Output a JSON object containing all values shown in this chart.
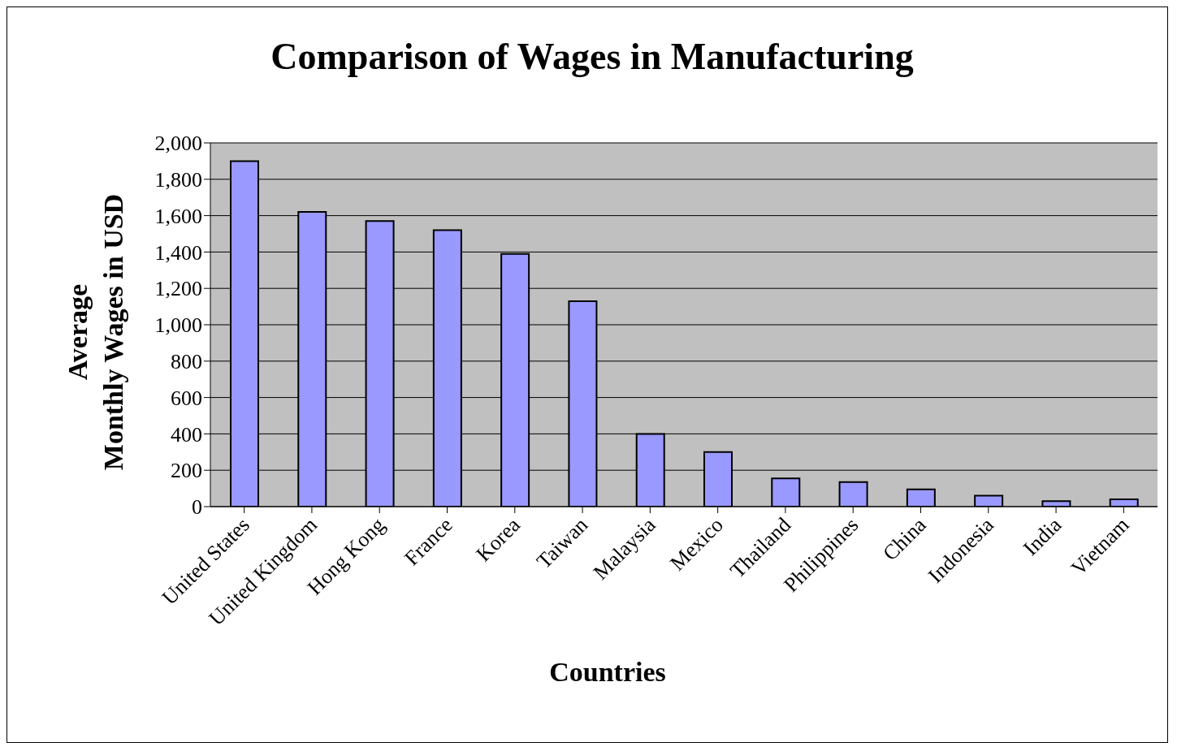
{
  "chart_data": {
    "type": "bar",
    "title": "Comparison of Wages in Manufacturing",
    "xlabel": "Countries",
    "ylabel": "Average Monthly Wages in USD",
    "categories": [
      "United States",
      "United Kingdom",
      "Hong Kong",
      "France",
      "Korea",
      "Taiwan",
      "Malaysia",
      "Mexico",
      "Thailand",
      "Philippines",
      "China",
      "Indonesia",
      "India",
      "Vietnam"
    ],
    "values": [
      1900,
      1620,
      1570,
      1520,
      1390,
      1130,
      400,
      300,
      155,
      135,
      95,
      60,
      30,
      40
    ],
    "color": "#9999ff",
    "ylim": [
      0,
      2000
    ],
    "yticks": [
      {
        "value": 0,
        "label": "0"
      },
      {
        "value": 200,
        "label": "200"
      },
      {
        "value": 400,
        "label": "400"
      },
      {
        "value": 600,
        "label": "600"
      },
      {
        "value": 800,
        "label": "800"
      },
      {
        "value": 1000,
        "label": "1,000"
      },
      {
        "value": 1200,
        "label": "1,200"
      },
      {
        "value": 1400,
        "label": "1,400"
      },
      {
        "value": 1600,
        "label": "1,600"
      },
      {
        "value": 1800,
        "label": "1,800"
      },
      {
        "value": 2000,
        "label": "2,000"
      }
    ],
    "grid": "y",
    "legend": false
  }
}
